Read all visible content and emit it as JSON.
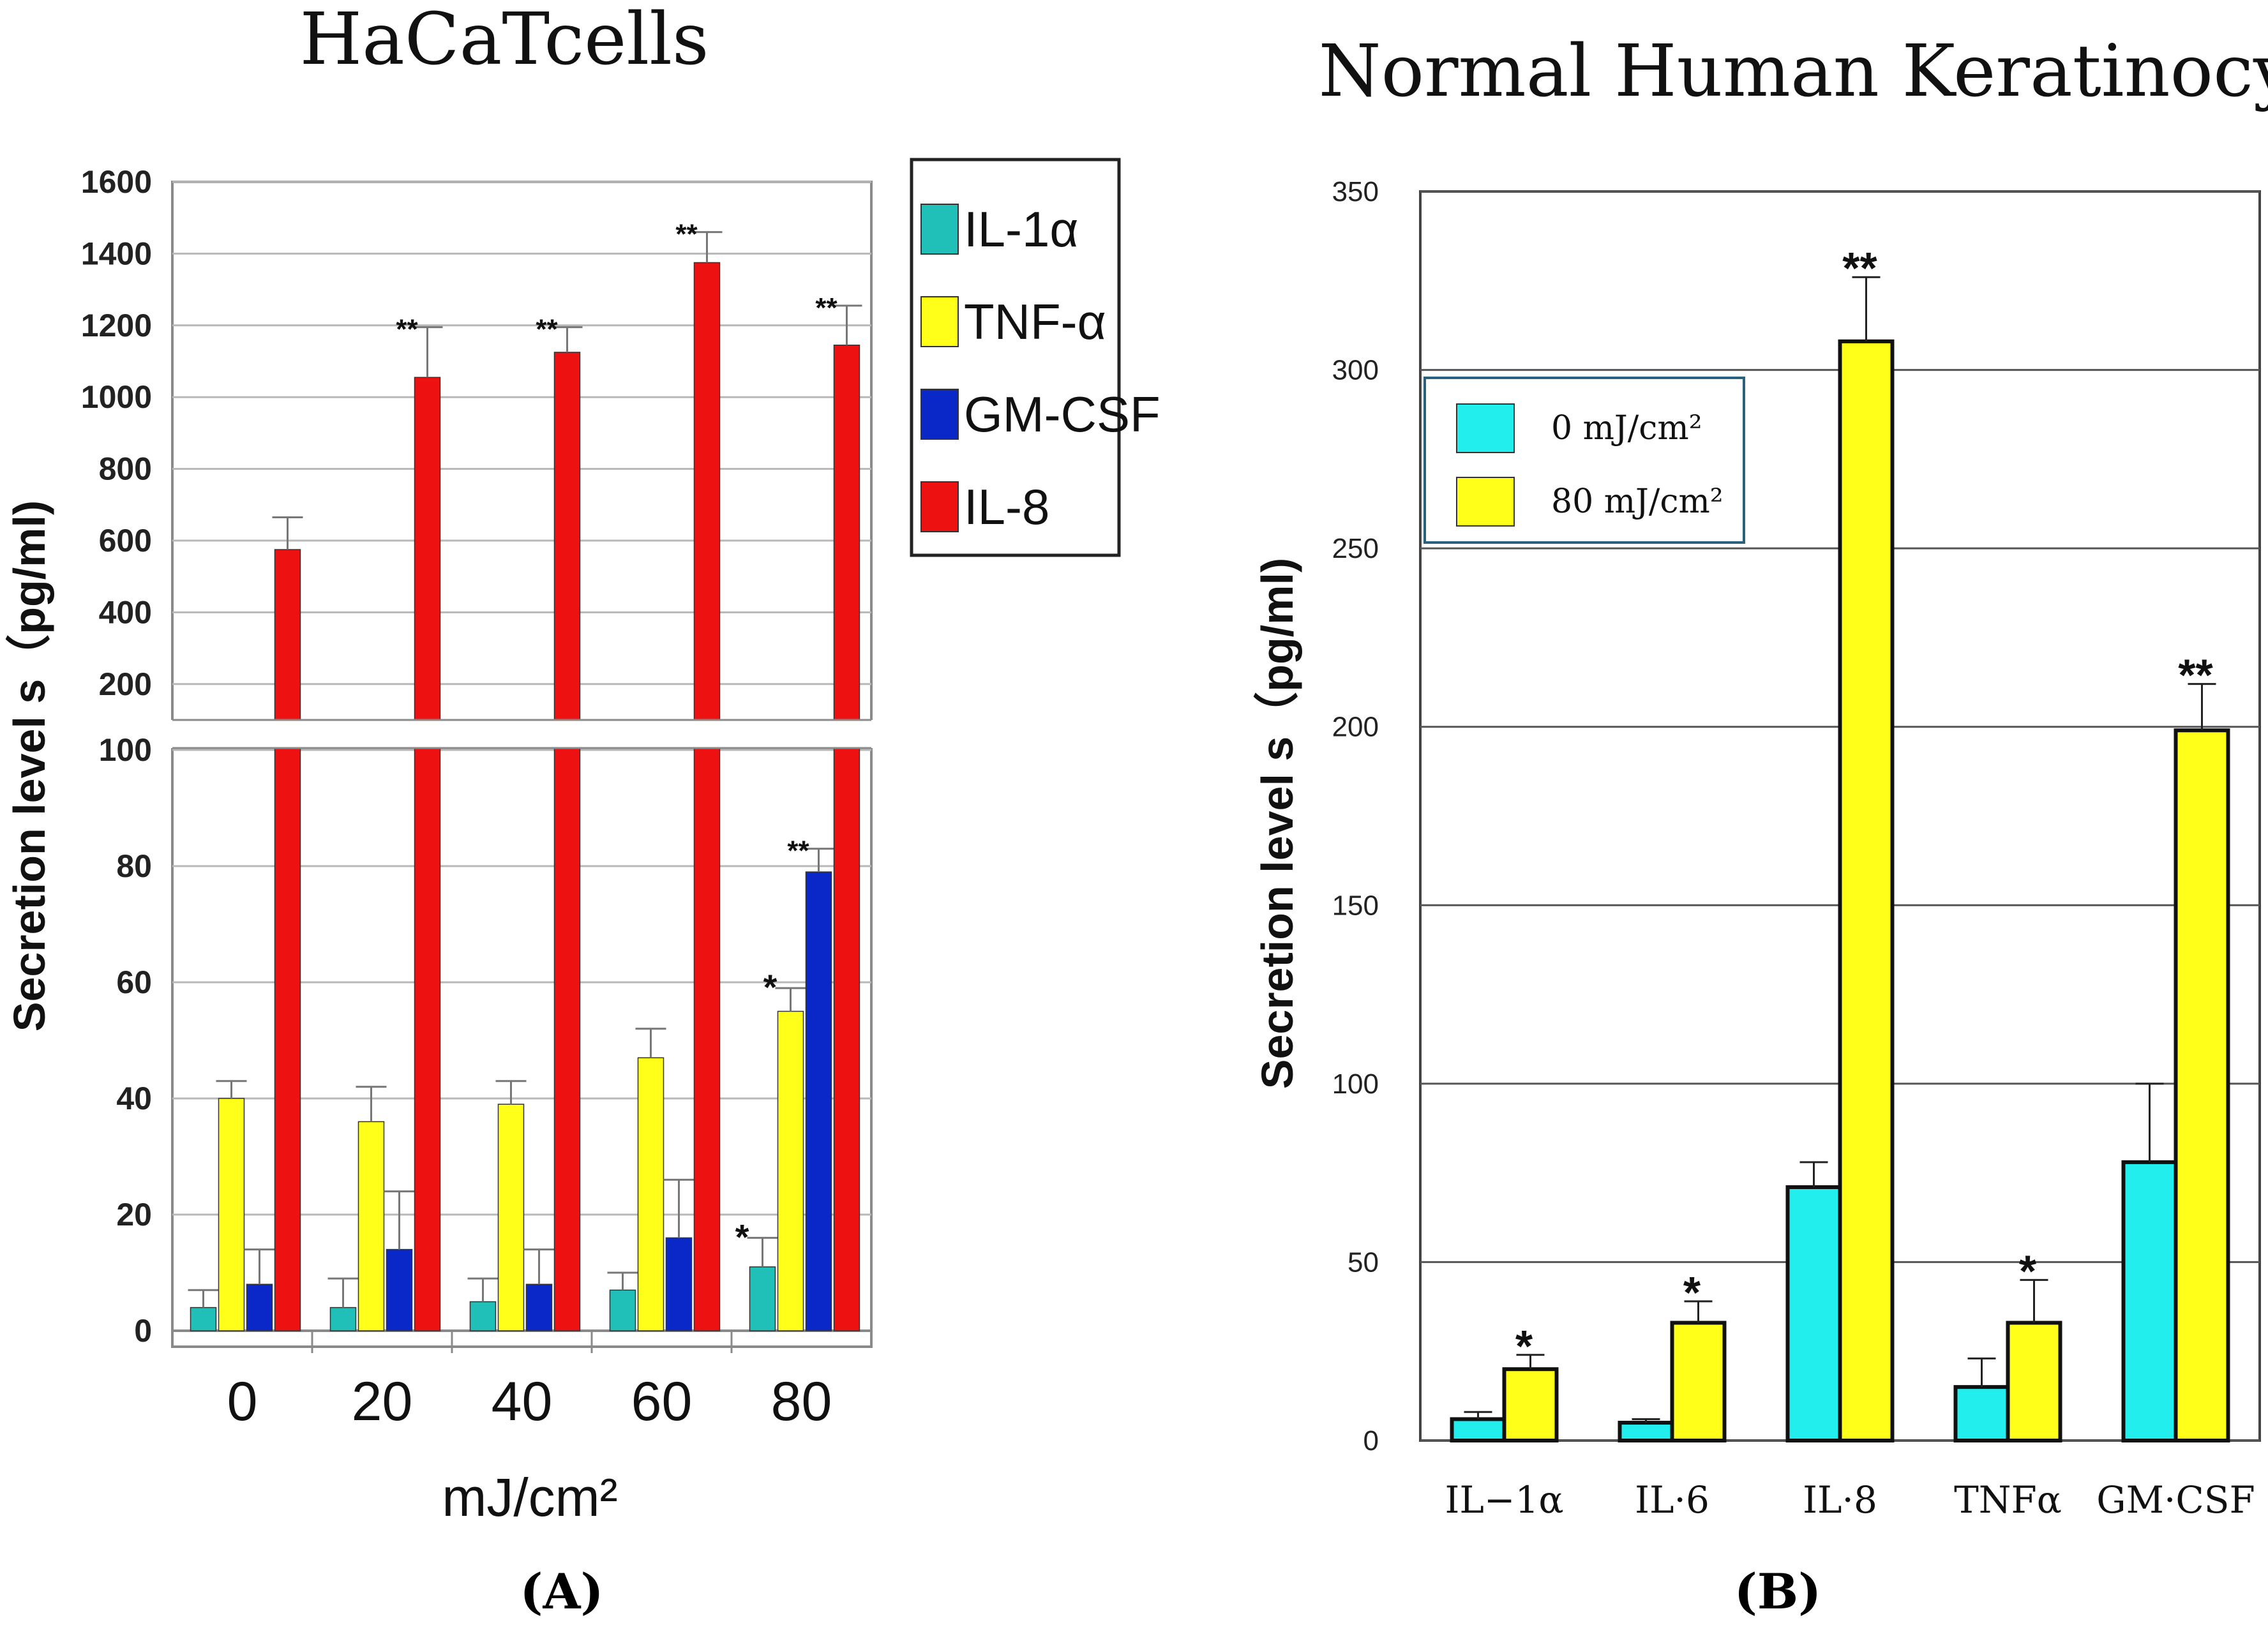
{
  "chart_data": [
    {
      "type": "bar",
      "title": "HaCaTcells",
      "panel_label": "A",
      "xlabel": "mJ/cm²",
      "ylabel": "Secretion level s（pg/ml)",
      "categories": [
        "0",
        "20",
        "40",
        "60",
        "80"
      ],
      "axis_break": true,
      "lower_ylim": [
        0,
        100
      ],
      "lower_yticks": [
        "0",
        "20",
        "40",
        "60",
        "80",
        "100"
      ],
      "upper_ylim": [
        100,
        1600
      ],
      "upper_yticks": [
        "200",
        "400",
        "600",
        "800",
        "1000",
        "1200",
        "1400",
        "1600"
      ],
      "legend": [
        "IL-1α",
        "TNF-α",
        "GM-CSF",
        "IL-8"
      ],
      "series": [
        {
          "name": "IL-1α",
          "color": "#20c0b8",
          "values": [
            4,
            4,
            5,
            7,
            11
          ],
          "errors": [
            3,
            5,
            4,
            3,
            5
          ],
          "significance": [
            "",
            "",
            "",
            "",
            "*"
          ]
        },
        {
          "name": "TNF-α",
          "color": "#ffff1a",
          "values": [
            40,
            36,
            39,
            47,
            55
          ],
          "errors": [
            3,
            6,
            4,
            5,
            4
          ],
          "significance": [
            "",
            "",
            "",
            "",
            "*"
          ]
        },
        {
          "name": "GM-CSF",
          "color": "#0a28c8",
          "values": [
            8,
            14,
            8,
            16,
            79
          ],
          "errors": [
            6,
            10,
            6,
            10,
            4
          ],
          "significance": [
            "",
            "",
            "",
            "",
            "**"
          ]
        },
        {
          "name": "IL-8",
          "color": "#ee1111",
          "values": [
            575,
            1055,
            1125,
            1375,
            1145
          ],
          "errors": [
            90,
            140,
            70,
            85,
            110
          ],
          "significance": [
            "",
            "**",
            "**",
            "**",
            "**"
          ]
        }
      ]
    },
    {
      "type": "bar",
      "title": "Normal Human Keratinocyte",
      "panel_label": "B",
      "xlabel": "",
      "ylabel": "Secretion level s（pg/ml)",
      "categories": [
        "IL−1α",
        "IL·6",
        "IL·8",
        "TNFα",
        "GM·CSF"
      ],
      "ylim": [
        0,
        350
      ],
      "yticks": [
        "0",
        "50",
        "100",
        "150",
        "200",
        "250",
        "300",
        "350"
      ],
      "legend": [
        "0 mJ/cm²",
        "80 mJ/cm²"
      ],
      "series": [
        {
          "name": "0 mJ/cm²",
          "color": "#22eeee",
          "values": [
            6,
            5,
            71,
            15,
            78
          ],
          "errors": [
            2,
            1,
            7,
            8,
            22
          ],
          "significance": [
            "",
            "",
            "",
            "",
            ""
          ]
        },
        {
          "name": "80 mJ/cm²",
          "color": "#ffff1a",
          "values": [
            20,
            33,
            308,
            33,
            199
          ],
          "errors": [
            4,
            6,
            18,
            12,
            13
          ],
          "significance": [
            "*",
            "*",
            "**",
            "*",
            "**"
          ]
        }
      ]
    }
  ]
}
